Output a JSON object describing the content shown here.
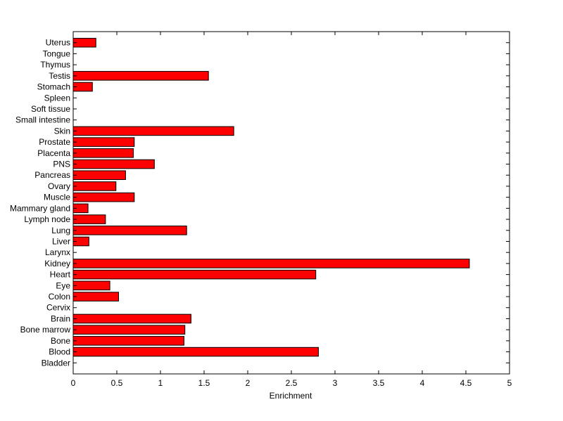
{
  "chart_data": {
    "type": "bar",
    "orientation": "horizontal",
    "categories": [
      "Bladder",
      "Blood",
      "Bone",
      "Bone marrow",
      "Brain",
      "Cervix",
      "Colon",
      "Eye",
      "Heart",
      "Kidney",
      "Larynx",
      "Liver",
      "Lung",
      "Lymph node",
      "Mammary gland",
      "Muscle",
      "Ovary",
      "Pancreas",
      "PNS",
      "Placenta",
      "Prostate",
      "Skin",
      "Small intestine",
      "Soft tissue",
      "Spleen",
      "Stomach",
      "Testis",
      "Thymus",
      "Tongue",
      "Uterus"
    ],
    "values": [
      0,
      2.81,
      1.27,
      1.28,
      1.35,
      0,
      0.52,
      0.42,
      2.78,
      4.54,
      0,
      0.18,
      1.3,
      0.37,
      0.17,
      0.7,
      0.49,
      0.6,
      0.93,
      0.69,
      0.7,
      1.84,
      0,
      0,
      0,
      0.22,
      1.55,
      0,
      0,
      0.26
    ],
    "title": "",
    "xlabel": "Enrichment",
    "ylabel": "",
    "xlim": [
      0,
      5
    ],
    "xticks": [
      "0",
      "0.5",
      "1",
      "1.5",
      "2",
      "2.5",
      "3",
      "3.5",
      "4",
      "4.5",
      "5"
    ],
    "grid": false,
    "bar_color": "#ff0000",
    "bar_edge_color": "#000000"
  }
}
